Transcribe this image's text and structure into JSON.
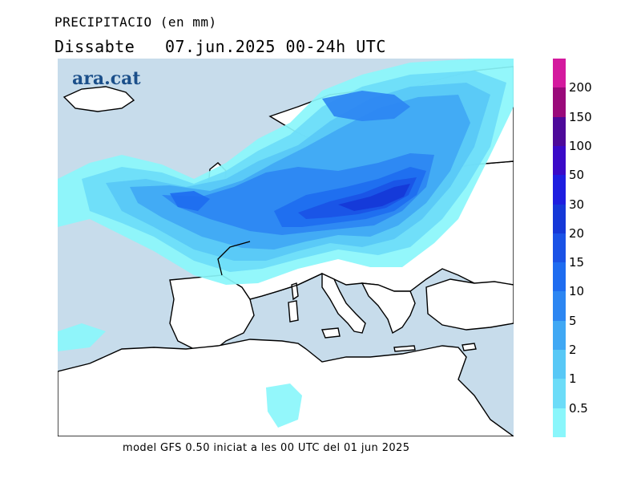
{
  "title": {
    "line1": "PRECIPITACIO (en mm)",
    "line2": "Dissabte   07.jun.2025 00-24h UTC"
  },
  "watermark": "ara.cat",
  "footer": "model GFS 0.50 iniciat a les 00 UTC del 01 jun 2025",
  "legend": {
    "levels": [
      {
        "label": "",
        "color": "#d41a9e"
      },
      {
        "label": "200",
        "color": "#9a0a7a"
      },
      {
        "label": "150",
        "color": "#4e0a9a"
      },
      {
        "label": "100",
        "color": "#3a0ac8"
      },
      {
        "label": "50",
        "color": "#1e1ee0"
      },
      {
        "label": "30",
        "color": "#1538d8"
      },
      {
        "label": "20",
        "color": "#1a52e6"
      },
      {
        "label": "15",
        "color": "#1e6cf0"
      },
      {
        "label": "10",
        "color": "#2c86f2"
      },
      {
        "label": "5",
        "color": "#40a8f4"
      },
      {
        "label": "2",
        "color": "#58c8f6"
      },
      {
        "label": "1",
        "color": "#6cdcf8"
      },
      {
        "label": "0.5",
        "color": "#8af6fb"
      }
    ]
  },
  "colors": {
    "sea": "#c7dceb",
    "land": "#ffffff",
    "coast": "#000000"
  }
}
